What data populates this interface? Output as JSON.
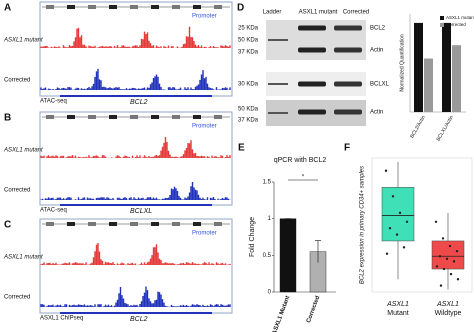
{
  "panel_a": {
    "label": "A",
    "rows": [
      "ASXL1 mutant",
      "Corrected"
    ],
    "annotation": "Promoter",
    "assay": "ATAC-seq",
    "gene": "BCL2"
  },
  "panel_b": {
    "label": "B",
    "rows": [
      "ASXL1 mutant",
      "Corrected"
    ],
    "annotation": "Promoter",
    "assay": "ATAC-seq",
    "gene": "BCLXL"
  },
  "panel_c": {
    "label": "C",
    "rows": [
      "ASXL1 mutant",
      "Corrected"
    ],
    "annotation": "Promoter",
    "assay": "ASXL1 ChIPseq",
    "gene": "BCL2"
  },
  "panel_d": {
    "label": "D",
    "lanes": [
      "Ladder",
      "ASXL1 mutant",
      "Corrected"
    ],
    "blots": [
      {
        "markers": [
          "25 KDa",
          "50 KDa",
          "37 KDa"
        ],
        "bands": [
          "BCL2",
          "Actin"
        ]
      },
      {
        "markers": [
          "30 KDa"
        ],
        "bands": [
          "BCLXL"
        ]
      },
      {
        "markers": [
          "50 KDa",
          "37 KDa"
        ],
        "bands": [
          "Actin"
        ]
      }
    ],
    "quantification": {
      "type": "bar",
      "y_label": "Normalized Quantification",
      "categories": [
        "BCL2/Actin",
        "BCLXL/Actin"
      ],
      "series": [
        {
          "name": "ASXL1 mutant",
          "color": "#111111",
          "values": [
            1,
            1
          ]
        },
        {
          "name": "Corrected",
          "color": "#9a9a9a",
          "values": [
            0.6,
            0.75
          ]
        }
      ],
      "ylim": [
        0,
        1.1
      ]
    }
  },
  "panel_e": {
    "label": "E",
    "type": "bar",
    "title": "qPCR with BCL2",
    "y_label": "Fold Change",
    "categories": [
      "ASXL1 Mutant",
      "Corrected"
    ],
    "values": [
      1,
      0.55
    ],
    "errors": [
      0,
      0.15
    ],
    "colors": [
      "#111111",
      "#b0b0b0"
    ],
    "ylim": [
      0,
      1.5
    ],
    "yticks": [
      0,
      0.5,
      1,
      1.5
    ],
    "annotation": "*"
  },
  "panel_f": {
    "label": "F",
    "type": "box",
    "y_label": "BCL2 expression in primary CD34+ samples",
    "categories": [
      [
        "ASXL1",
        "Mutant"
      ],
      [
        "ASXL1",
        "Wildtype"
      ]
    ],
    "colors": [
      "#3fe0b8",
      "#ee4a4a"
    ],
    "ylim": [
      0,
      1.05
    ],
    "boxes": [
      {
        "min": 0.1,
        "q1": 0.4,
        "median": 0.6,
        "q3": 0.82,
        "max": 1.02
      },
      {
        "min": 0.02,
        "q1": 0.18,
        "median": 0.28,
        "q3": 0.4,
        "max": 0.62
      }
    ],
    "points": [
      [
        0.95,
        0.75,
        0.62,
        0.55,
        0.5,
        0.45,
        0.35,
        0.3
      ],
      [
        0.55,
        0.42,
        0.36,
        0.32,
        0.28,
        0.26,
        0.24,
        0.2,
        0.18,
        0.14,
        0.1,
        0.05
      ]
    ]
  }
}
